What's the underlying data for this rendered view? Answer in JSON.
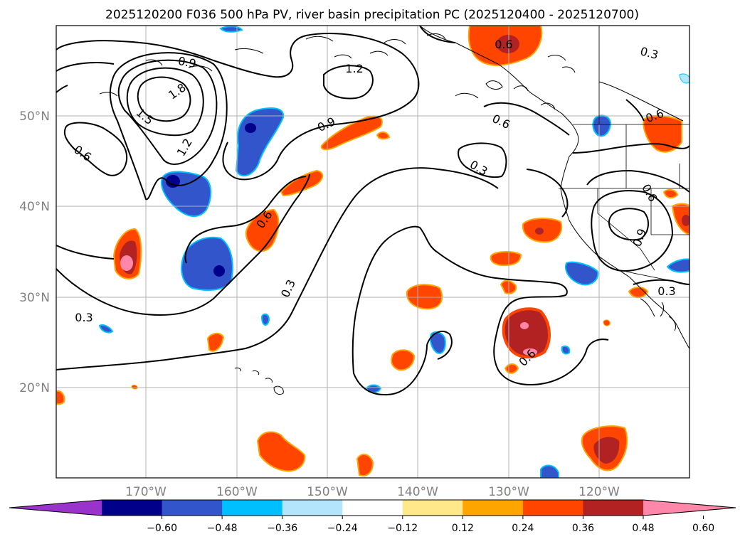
{
  "title": "2025120200 F036 500 hPa PV, river basin precipitation PC (2025120400 - 2025120700)",
  "axes": {
    "lat_labels": [
      "20°N",
      "30°N",
      "40°N",
      "50°N"
    ],
    "lon_labels": [
      "170°W",
      "160°W",
      "150°W",
      "140°W",
      "130°W",
      "120°W"
    ]
  },
  "colorbar": {
    "ticks": [
      "−0.60",
      "−0.48",
      "−0.36",
      "−0.24",
      "−0.12",
      "0.12",
      "0.24",
      "0.36",
      "0.48",
      "0.60"
    ],
    "colors": [
      "#9933cc",
      "#00008b",
      "#3355cc",
      "#00bfff",
      "#b3e5fc",
      "#ffffff",
      "#ffe88a",
      "#ffa500",
      "#ff4500",
      "#b22222",
      "#ff88aa"
    ]
  },
  "contour_labels": [
    "0.9",
    "1.8",
    "1.5",
    "1.2",
    "0.6",
    "1.2",
    "0.9",
    "0.6",
    "0.3",
    "0.6",
    "0.3",
    "0.6",
    "0.9",
    "0.6",
    "0.3",
    "0.3",
    "0.3",
    "0.6",
    "0.6"
  ],
  "precip_colors": {
    "blue_light": "#b3e5fc",
    "blue_mid": "#00bfff",
    "blue": "#3355cc",
    "blue_dark": "#00008b",
    "yellow": "#ffe88a",
    "orange": "#ffa500",
    "red_orange": "#ff4500",
    "dark_red": "#b22222",
    "pink": "#ff88aa"
  }
}
